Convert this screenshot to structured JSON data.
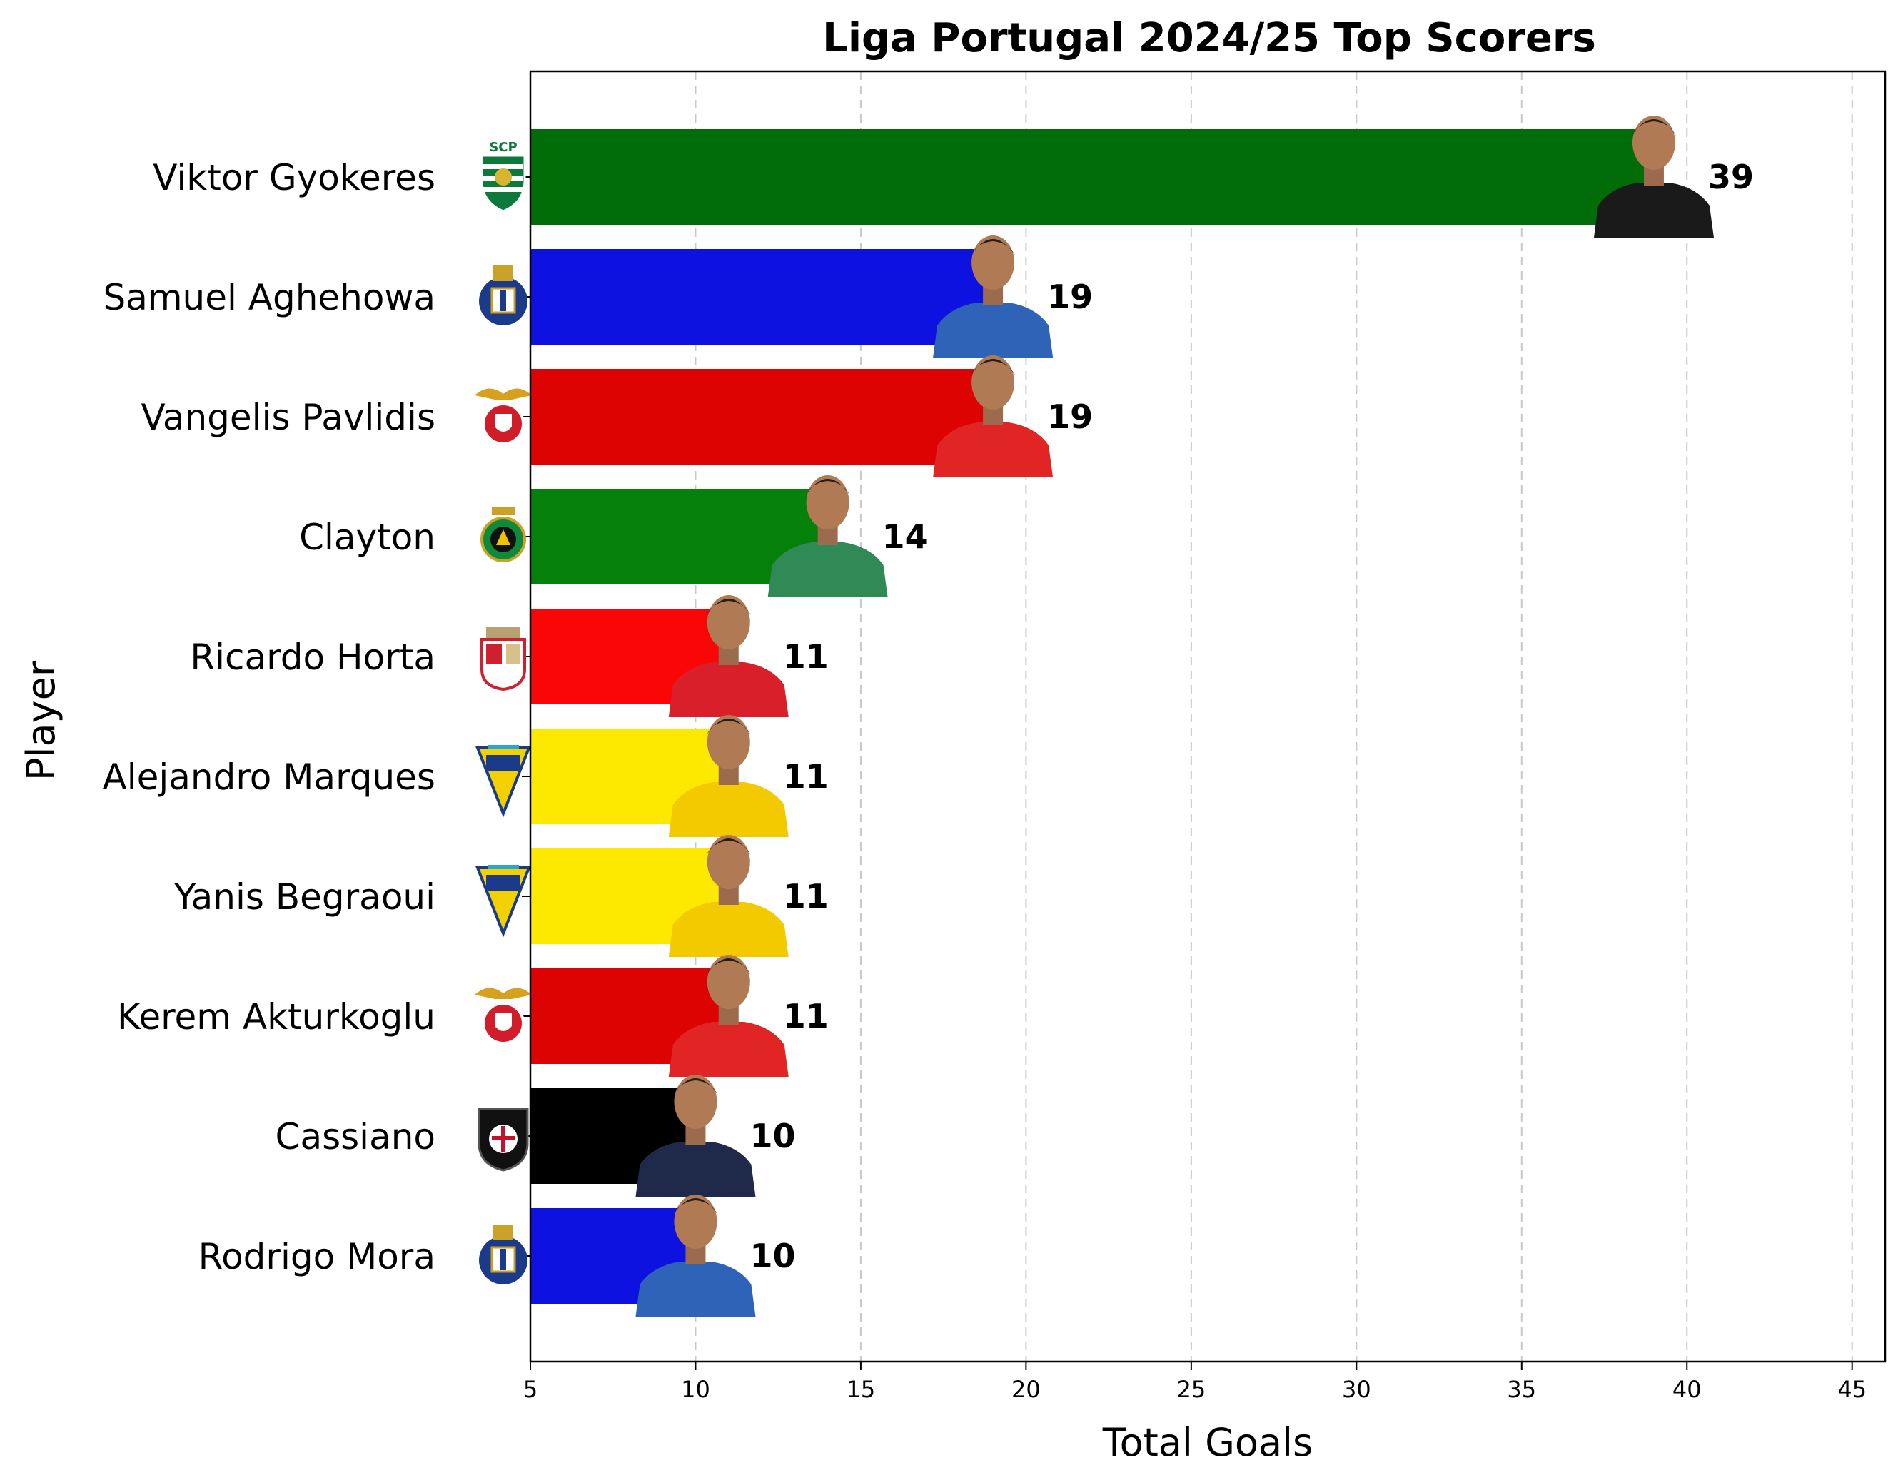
{
  "chart_data": {
    "type": "bar",
    "orientation": "horizontal",
    "title": "Liga Portugal 2024/25 Top Scorers",
    "xlabel": "Total Goals",
    "ylabel": "Player",
    "xlim": [
      5,
      46
    ],
    "xticks": [
      5,
      10,
      15,
      20,
      25,
      30,
      35,
      40,
      45
    ],
    "grid": "x-dashed",
    "categories": [
      "Viktor Gyokeres",
      "Samuel Aghehowa",
      "Vangelis Pavlidis",
      "Clayton",
      "Ricardo Horta",
      "Alejandro Marques",
      "Yanis Begraoui",
      "Kerem Akturkoglu",
      "Cassiano",
      "Rodrigo Mora"
    ],
    "values": [
      39,
      19,
      19,
      14,
      11,
      11,
      11,
      11,
      10,
      10
    ],
    "bar_colors": [
      "#006d08",
      "#0d12e0",
      "#dd0303",
      "#05800a",
      "#fb0606",
      "#fde800",
      "#fde800",
      "#dd0303",
      "#000000",
      "#0d12e0"
    ],
    "player_kit_colors": [
      "#1a1a1a",
      "#2f63b8",
      "#e12424",
      "#2f8a55",
      "#d9202a",
      "#f3c900",
      "#f3c900",
      "#e12424",
      "#1f2a4a",
      "#2f63b8"
    ],
    "club_badges": [
      "sporting-badge",
      "porto-badge",
      "benfica-badge",
      "rio-ave-badge",
      "braga-badge",
      "estoril-badge",
      "estoril-badge",
      "benfica-badge",
      "casa-pia-badge",
      "porto-badge"
    ]
  }
}
